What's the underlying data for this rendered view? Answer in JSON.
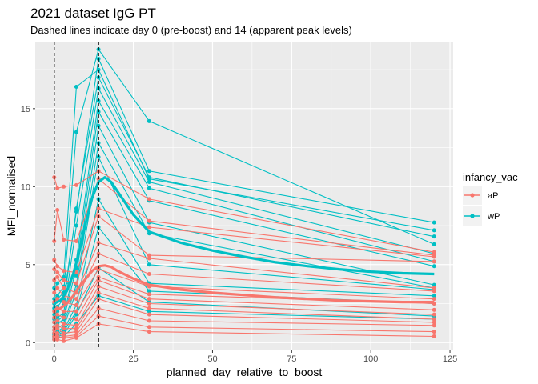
{
  "chart_data": {
    "type": "line",
    "title": "2021 dataset IgG PT",
    "subtitle": "Dashed lines indicate day 0 (pre-boost) and 14 (apparent peak levels)",
    "xlabel": "planned_day_relative_to_boost",
    "ylabel": "MFI_normalised",
    "xlim": [
      -6,
      126
    ],
    "ylim": [
      -0.5,
      19.3
    ],
    "xticks": [
      0,
      25,
      50,
      75,
      100,
      125
    ],
    "yticks": [
      0,
      5,
      10,
      15
    ],
    "xtick_labels": [
      "0",
      "25",
      "50",
      "75",
      "100",
      "125"
    ],
    "ytick_labels": [
      "0",
      "5",
      "10",
      "15"
    ],
    "grid": true,
    "background": "#EBEBEB",
    "vlines": [
      0,
      14
    ],
    "legend": {
      "title": "infancy_vac",
      "position": "right",
      "items": [
        {
          "label": "aP",
          "color": "#F8766D"
        },
        {
          "label": "wP",
          "color": "#00BFC4"
        }
      ]
    },
    "colors": {
      "aP": "#F8766D",
      "wP": "#00BFC4"
    },
    "series": [
      {
        "group": "wP",
        "x": [
          0,
          1,
          3,
          7,
          14,
          30,
          120
        ],
        "y": [
          3.5,
          3.8,
          4.2,
          16.4,
          17.5,
          10.5,
          7.2
        ]
      },
      {
        "group": "wP",
        "x": [
          0,
          1,
          3,
          7,
          14,
          30,
          120
        ],
        "y": [
          2.5,
          2.8,
          3.2,
          13.5,
          18.8,
          14.2,
          6.3
        ]
      },
      {
        "group": "wP",
        "x": [
          0,
          1,
          3,
          7,
          14,
          30,
          120
        ],
        "y": [
          2.2,
          2.3,
          2.8,
          8.4,
          18.2,
          11.0,
          7.7
        ]
      },
      {
        "group": "wP",
        "x": [
          0,
          1,
          3,
          7,
          14,
          30,
          120
        ],
        "y": [
          1.8,
          2.0,
          2.4,
          8.6,
          17.0,
          10.6,
          6.8
        ]
      },
      {
        "group": "wP",
        "x": [
          0,
          1,
          3,
          7,
          14,
          30,
          120
        ],
        "y": [
          1.5,
          1.6,
          1.9,
          7.5,
          16.3,
          10.3,
          5.7
        ]
      },
      {
        "group": "wP",
        "x": [
          0,
          1,
          3,
          7,
          14,
          30,
          120
        ],
        "y": [
          1.3,
          1.4,
          1.7,
          5.3,
          15.5,
          9.9,
          5.2
        ]
      },
      {
        "group": "wP",
        "x": [
          0,
          1,
          3,
          7,
          14,
          30,
          120
        ],
        "y": [
          1.0,
          1.2,
          1.5,
          4.8,
          14.8,
          9.1,
          4.9
        ]
      },
      {
        "group": "wP",
        "x": [
          0,
          1,
          3,
          7,
          14,
          30,
          120
        ],
        "y": [
          2.8,
          3.0,
          3.6,
          4.3,
          13.9,
          7.7,
          3.7
        ]
      },
      {
        "group": "wP",
        "x": [
          0,
          1,
          3,
          7,
          14,
          30,
          120
        ],
        "y": [
          0.8,
          0.9,
          1.2,
          3.7,
          12.8,
          7.0,
          3.5
        ]
      },
      {
        "group": "wP",
        "x": [
          0,
          1,
          3,
          7,
          14,
          30,
          120
        ],
        "y": [
          0.6,
          0.7,
          1.0,
          3.3,
          11.9,
          5.0,
          3.4
        ]
      },
      {
        "group": "wP",
        "x": [
          0,
          1,
          3,
          7,
          14,
          30,
          120
        ],
        "y": [
          0.5,
          0.6,
          0.8,
          2.4,
          9.2,
          3.8,
          3.0
        ]
      },
      {
        "group": "wP",
        "x": [
          0,
          1,
          3,
          7,
          14,
          30,
          120
        ],
        "y": [
          0.4,
          0.5,
          0.7,
          2.0,
          7.4,
          3.3,
          2.5
        ]
      },
      {
        "group": "wP",
        "x": [
          0,
          1,
          3,
          7,
          14,
          30,
          120
        ],
        "y": [
          0.3,
          0.4,
          0.5,
          1.8,
          4.8,
          2.6,
          1.7
        ]
      },
      {
        "group": "wP",
        "x": [
          0,
          1,
          3,
          7,
          14,
          30,
          120
        ],
        "y": [
          0.2,
          0.3,
          0.4,
          1.2,
          3.0,
          2.0,
          1.5
        ]
      },
      {
        "group": "aP",
        "x": [
          0,
          1,
          3,
          7,
          14,
          30,
          120
        ],
        "y": [
          10.6,
          9.9,
          10.0,
          10.1,
          11.0,
          9.2,
          5.8
        ]
      },
      {
        "group": "aP",
        "x": [
          0,
          1,
          3,
          7,
          14,
          30,
          120
        ],
        "y": [
          6.5,
          8.5,
          6.6,
          6.5,
          10.5,
          7.8,
          5.6
        ]
      },
      {
        "group": "aP",
        "x": [
          0,
          1,
          3,
          7,
          14,
          30,
          120
        ],
        "y": [
          5.3,
          4.9,
          4.6,
          4.5,
          8.6,
          7.4,
          5.5
        ]
      },
      {
        "group": "aP",
        "x": [
          0,
          1,
          3,
          7,
          14,
          30,
          120
        ],
        "y": [
          4.7,
          4.5,
          4.0,
          3.8,
          8.1,
          5.6,
          5.2
        ]
      },
      {
        "group": "aP",
        "x": [
          0,
          1,
          3,
          7,
          14,
          30,
          120
        ],
        "y": [
          4.0,
          4.2,
          3.5,
          3.2,
          6.4,
          5.4,
          3.5
        ]
      },
      {
        "group": "aP",
        "x": [
          0,
          1,
          3,
          7,
          14,
          30,
          120
        ],
        "y": [
          3.2,
          3.5,
          3.0,
          2.8,
          5.7,
          4.4,
          3.3
        ]
      },
      {
        "group": "aP",
        "x": [
          0,
          1,
          3,
          7,
          14,
          30,
          120
        ],
        "y": [
          2.6,
          2.8,
          2.6,
          2.4,
          4.7,
          3.6,
          2.8
        ]
      },
      {
        "group": "aP",
        "x": [
          0,
          1,
          3,
          7,
          14,
          30,
          120
        ],
        "y": [
          2.0,
          2.2,
          2.0,
          2.0,
          4.2,
          3.1,
          2.5
        ]
      },
      {
        "group": "aP",
        "x": [
          0,
          1,
          3,
          7,
          14,
          30,
          120
        ],
        "y": [
          1.6,
          1.8,
          1.6,
          1.5,
          4.0,
          2.8,
          2.1
        ]
      },
      {
        "group": "aP",
        "x": [
          0,
          1,
          3,
          7,
          14,
          30,
          120
        ],
        "y": [
          1.3,
          1.4,
          1.2,
          1.1,
          3.6,
          2.5,
          1.8
        ]
      },
      {
        "group": "aP",
        "x": [
          0,
          1,
          3,
          7,
          14,
          30,
          120
        ],
        "y": [
          1.0,
          1.1,
          0.9,
          0.9,
          3.2,
          2.2,
          1.5
        ]
      },
      {
        "group": "aP",
        "x": [
          0,
          1,
          3,
          7,
          14,
          30,
          120
        ],
        "y": [
          0.8,
          0.9,
          0.6,
          0.7,
          2.8,
          1.8,
          1.3
        ]
      },
      {
        "group": "aP",
        "x": [
          0,
          1,
          3,
          7,
          14,
          30,
          120
        ],
        "y": [
          0.6,
          0.6,
          0.4,
          0.5,
          2.2,
          1.4,
          1.1
        ]
      },
      {
        "group": "aP",
        "x": [
          0,
          1,
          3,
          7,
          14,
          30,
          120
        ],
        "y": [
          0.4,
          0.4,
          0.3,
          0.4,
          1.7,
          1.0,
          0.7
        ]
      },
      {
        "group": "aP",
        "x": [
          0,
          1,
          3,
          7,
          14,
          30,
          120
        ],
        "y": [
          0.2,
          0.2,
          0.1,
          0.3,
          1.2,
          0.7,
          0.4
        ]
      }
    ],
    "smooth": [
      {
        "group": "wP",
        "x": [
          0,
          2,
          4,
          6,
          8,
          10,
          12,
          14,
          16,
          18,
          20,
          25,
          30,
          40,
          50,
          60,
          70,
          80,
          90,
          100,
          110,
          120
        ],
        "y": [
          2.5,
          2.7,
          3.3,
          4.4,
          5.9,
          7.7,
          9.3,
          10.3,
          10.6,
          10.3,
          9.7,
          8.2,
          7.1,
          6.4,
          5.9,
          5.5,
          5.15,
          4.9,
          4.7,
          4.55,
          4.45,
          4.4
        ]
      },
      {
        "group": "aP",
        "x": [
          0,
          2,
          4,
          6,
          8,
          10,
          12,
          14,
          16,
          18,
          20,
          25,
          30,
          40,
          50,
          60,
          70,
          80,
          90,
          100,
          110,
          120
        ],
        "y": [
          2.1,
          2.2,
          2.5,
          3.0,
          3.6,
          4.1,
          4.6,
          4.9,
          4.95,
          4.85,
          4.6,
          4.1,
          3.7,
          3.4,
          3.2,
          3.05,
          2.9,
          2.8,
          2.7,
          2.65,
          2.6,
          2.6
        ]
      }
    ]
  }
}
